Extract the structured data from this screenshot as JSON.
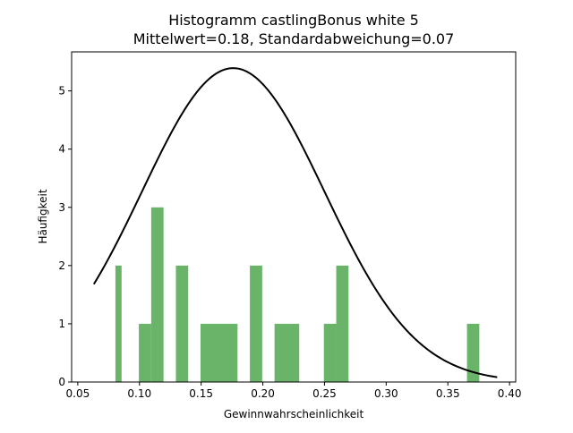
{
  "chart_data": {
    "type": "bar",
    "title": "Histogramm castlingBonus white 5",
    "subtitle": "Mittelwert=0.18, Standardabweichung=0.07",
    "xlabel": "Gewinnwahrscheinlichkeit",
    "ylabel": "Häufigkeit",
    "xlim": [
      0.045,
      0.405
    ],
    "ylim": [
      0,
      5.67
    ],
    "xticks": [
      "0.05",
      "0.10",
      "0.15",
      "0.20",
      "0.25",
      "0.30",
      "0.35",
      "0.40"
    ],
    "yticks": [
      "0",
      "1",
      "2",
      "3",
      "4",
      "5"
    ],
    "bar_color": "#6ab46a",
    "curve_color": "#000000",
    "bins": [
      {
        "x0": 0.0805,
        "x1": 0.0855,
        "value": 2
      },
      {
        "x0": 0.0995,
        "x1": 0.1095,
        "value": 1
      },
      {
        "x0": 0.1095,
        "x1": 0.1195,
        "value": 3
      },
      {
        "x0": 0.1295,
        "x1": 0.1395,
        "value": 2
      },
      {
        "x0": 0.1495,
        "x1": 0.1795,
        "value": 1
      },
      {
        "x0": 0.1895,
        "x1": 0.1995,
        "value": 2
      },
      {
        "x0": 0.2095,
        "x1": 0.2295,
        "value": 1
      },
      {
        "x0": 0.2495,
        "x1": 0.2595,
        "value": 1
      },
      {
        "x0": 0.2595,
        "x1": 0.2695,
        "value": 2
      },
      {
        "x0": 0.3655,
        "x1": 0.3755,
        "value": 1
      }
    ],
    "curve": {
      "type": "normal-density",
      "mean": 0.176,
      "std": 0.074,
      "x_range": [
        0.063,
        0.39
      ]
    }
  }
}
